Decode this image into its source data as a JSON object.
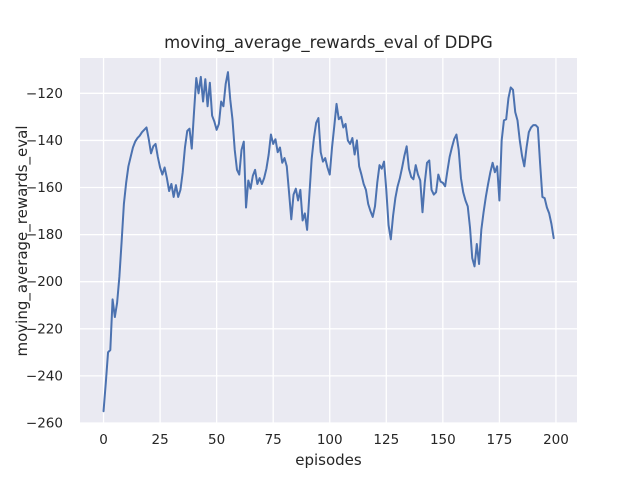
{
  "chart_data": {
    "type": "line",
    "title": "moving_average_rewards_eval of DDPG",
    "xlabel": "episodes",
    "ylabel": "moving_average_rewards_eval",
    "series_name": "moving_average_rewards_eval",
    "x_is_index": true,
    "x_start": 0,
    "values": [
      -255,
      -243,
      -230,
      -229,
      -207.5,
      -215,
      -209,
      -198,
      -183,
      -167,
      -158,
      -151,
      -147,
      -143,
      -140.5,
      -139,
      -138,
      -136.5,
      -135.5,
      -134.5,
      -139.5,
      -145.5,
      -142.5,
      -141.5,
      -147,
      -151.5,
      -154.5,
      -151.5,
      -156,
      -161.5,
      -158.5,
      -164,
      -159,
      -164,
      -161,
      -153.5,
      -143,
      -136,
      -135,
      -143.5,
      -128,
      -113.5,
      -120,
      -113,
      -123.5,
      -114,
      -125.5,
      -115.5,
      -129.5,
      -132,
      -135.5,
      -133,
      -123.5,
      -125.5,
      -116,
      -111,
      -122.5,
      -131,
      -144,
      -152.5,
      -154.5,
      -144,
      -140.5,
      -168.5,
      -157,
      -160.5,
      -155,
      -152.5,
      -158.5,
      -156,
      -158.5,
      -156,
      -152,
      -146,
      -137.5,
      -141.5,
      -139.5,
      -145,
      -143,
      -149.5,
      -147.5,
      -151,
      -162,
      -173.5,
      -163,
      -160.5,
      -165.5,
      -161,
      -174,
      -171,
      -178,
      -163,
      -148,
      -139,
      -132.5,
      -130.5,
      -145,
      -149,
      -147.5,
      -151.5,
      -154.5,
      -143,
      -134,
      -124.5,
      -131,
      -130,
      -134.5,
      -133,
      -140,
      -141.5,
      -139,
      -146,
      -140,
      -151,
      -154.5,
      -158.5,
      -161,
      -167,
      -170,
      -172.5,
      -168,
      -158,
      -150.5,
      -152,
      -149,
      -161,
      -176,
      -182,
      -172,
      -164.5,
      -159.5,
      -156,
      -151.5,
      -146.5,
      -142.5,
      -152,
      -155.5,
      -156.5,
      -150.5,
      -154.5,
      -157,
      -170.5,
      -158,
      -149.5,
      -148.5,
      -161,
      -163,
      -162,
      -154.5,
      -157.5,
      -158,
      -159.5,
      -153,
      -147,
      -143,
      -139.5,
      -137.5,
      -144,
      -156,
      -162,
      -165.5,
      -168,
      -177,
      -190,
      -193.5,
      -184,
      -192.5,
      -178,
      -170.5,
      -164,
      -158.5,
      -153.5,
      -149.5,
      -153.5,
      -151,
      -165.5,
      -140,
      -131.5,
      -131,
      -122,
      -117.5,
      -118.5,
      -128,
      -131.5,
      -140,
      -146.5,
      -151,
      -143,
      -136.5,
      -134.5,
      -133.5,
      -133.5,
      -134.5,
      -150,
      -164,
      -164.5,
      -168.5,
      -171,
      -175.5,
      -181.5
    ],
    "xticks": [
      0,
      25,
      50,
      75,
      100,
      125,
      150,
      175,
      200
    ],
    "yticks": [
      -260,
      -240,
      -220,
      -200,
      -180,
      -160,
      -140,
      -120
    ],
    "xlim": [
      -10.4,
      209.3
    ],
    "ylim": [
      -260,
      -105
    ],
    "grid": true,
    "legend": "none",
    "line_color": "#4C72B0",
    "plot_bg_color": "#EAEAF2",
    "grid_color": "#FFFFFF",
    "text_color": "#262626"
  }
}
